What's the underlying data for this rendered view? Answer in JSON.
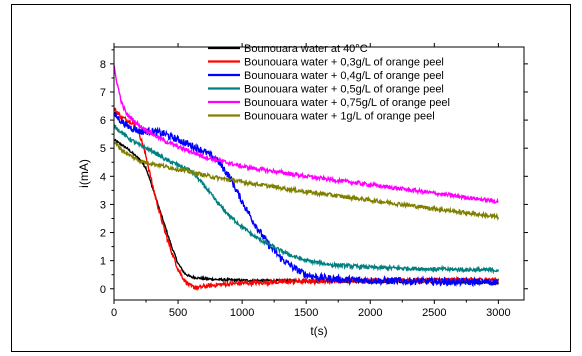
{
  "chart_data": {
    "type": "line",
    "xlabel": "t(s)",
    "ylabel": "i(mA)",
    "xlim": [
      0,
      3200
    ],
    "ylim": [
      -0.4,
      8.6
    ],
    "xticks": [
      0,
      500,
      1000,
      1500,
      2000,
      2500,
      3000
    ],
    "yticks": [
      0,
      1,
      2,
      3,
      4,
      5,
      6,
      7,
      8
    ],
    "legend_position": "top-right",
    "series": [
      {
        "name": "Bounouara water at 40°C",
        "color": "#000000",
        "points": [
          [
            0,
            5.3
          ],
          [
            100,
            5.0
          ],
          [
            200,
            4.6
          ],
          [
            250,
            4.3
          ],
          [
            300,
            3.6
          ],
          [
            350,
            2.9
          ],
          [
            400,
            2.2
          ],
          [
            450,
            1.5
          ],
          [
            500,
            0.9
          ],
          [
            550,
            0.55
          ],
          [
            600,
            0.42
          ],
          [
            700,
            0.36
          ],
          [
            800,
            0.33
          ],
          [
            1000,
            0.3
          ],
          [
            1500,
            0.28
          ],
          [
            2000,
            0.26
          ],
          [
            2500,
            0.24
          ],
          [
            3000,
            0.22
          ]
        ],
        "noise": 0.04
      },
      {
        "name": "Bounouara water + 0,3g/L of orange peel",
        "color": "#ff0000",
        "points": [
          [
            0,
            6.4
          ],
          [
            60,
            6.1
          ],
          [
            150,
            5.9
          ],
          [
            200,
            5.5
          ],
          [
            250,
            4.7
          ],
          [
            300,
            3.7
          ],
          [
            350,
            2.8
          ],
          [
            400,
            2.0
          ],
          [
            450,
            1.3
          ],
          [
            500,
            0.7
          ],
          [
            550,
            0.3
          ],
          [
            600,
            0.08
          ],
          [
            650,
            0.03
          ],
          [
            700,
            0.08
          ],
          [
            800,
            0.14
          ],
          [
            1000,
            0.2
          ],
          [
            1500,
            0.27
          ],
          [
            2000,
            0.3
          ],
          [
            2500,
            0.31
          ],
          [
            3000,
            0.32
          ]
        ],
        "noise": 0.08
      },
      {
        "name": "Bounouara water + 0,4g/L of orange peel",
        "color": "#0000ff",
        "points": [
          [
            0,
            6.2
          ],
          [
            100,
            5.8
          ],
          [
            200,
            5.6
          ],
          [
            300,
            5.6
          ],
          [
            400,
            5.5
          ],
          [
            500,
            5.3
          ],
          [
            600,
            5.1
          ],
          [
            700,
            4.9
          ],
          [
            800,
            4.6
          ],
          [
            900,
            4.0
          ],
          [
            1000,
            3.1
          ],
          [
            1100,
            2.3
          ],
          [
            1200,
            1.6
          ],
          [
            1300,
            1.1
          ],
          [
            1400,
            0.75
          ],
          [
            1500,
            0.5
          ],
          [
            1600,
            0.4
          ],
          [
            1800,
            0.32
          ],
          [
            2200,
            0.28
          ],
          [
            2600,
            0.25
          ],
          [
            3000,
            0.24
          ]
        ],
        "noise": 0.13
      },
      {
        "name": "Bounouara water + 0,5g/L of orange peel",
        "color": "#008080",
        "points": [
          [
            0,
            5.8
          ],
          [
            100,
            5.4
          ],
          [
            200,
            5.1
          ],
          [
            300,
            4.9
          ],
          [
            400,
            4.6
          ],
          [
            500,
            4.4
          ],
          [
            600,
            4.2
          ],
          [
            700,
            3.7
          ],
          [
            800,
            3.1
          ],
          [
            900,
            2.6
          ],
          [
            1000,
            2.2
          ],
          [
            1100,
            1.85
          ],
          [
            1200,
            1.6
          ],
          [
            1300,
            1.35
          ],
          [
            1400,
            1.15
          ],
          [
            1500,
            1.0
          ],
          [
            1700,
            0.85
          ],
          [
            2000,
            0.76
          ],
          [
            2500,
            0.7
          ],
          [
            3000,
            0.66
          ]
        ],
        "noise": 0.07
      },
      {
        "name": "Bounouara water + 0,75g/L of orange peel",
        "color": "#ff00ff",
        "points": [
          [
            0,
            7.9
          ],
          [
            20,
            7.4
          ],
          [
            60,
            6.6
          ],
          [
            100,
            6.2
          ],
          [
            200,
            5.8
          ],
          [
            300,
            5.5
          ],
          [
            400,
            5.25
          ],
          [
            500,
            5.05
          ],
          [
            700,
            4.7
          ],
          [
            1000,
            4.35
          ],
          [
            1500,
            4.0
          ],
          [
            2000,
            3.7
          ],
          [
            2500,
            3.4
          ],
          [
            3000,
            3.1
          ]
        ],
        "noise": 0.07
      },
      {
        "name": "Bounouara water + 1g/L of orange peel",
        "color": "#808000",
        "points": [
          [
            0,
            5.2
          ],
          [
            100,
            4.8
          ],
          [
            200,
            4.55
          ],
          [
            400,
            4.35
          ],
          [
            600,
            4.15
          ],
          [
            800,
            3.95
          ],
          [
            1000,
            3.8
          ],
          [
            1500,
            3.45
          ],
          [
            2000,
            3.15
          ],
          [
            2500,
            2.85
          ],
          [
            3000,
            2.55
          ]
        ],
        "noise": 0.07
      }
    ]
  }
}
